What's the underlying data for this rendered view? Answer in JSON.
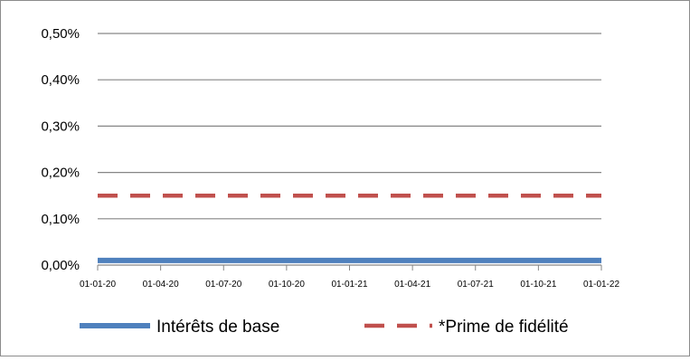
{
  "chart_data": {
    "type": "line",
    "title": "",
    "xlabel": "",
    "ylabel": "",
    "x": [
      "01-01-20",
      "01-04-20",
      "01-07-20",
      "01-10-20",
      "01-01-21",
      "01-04-21",
      "01-07-21",
      "01-10-21",
      "01-01-22"
    ],
    "y_ticks": [
      "0,00%",
      "0,10%",
      "0,20%",
      "0,30%",
      "0,40%",
      "0,50%"
    ],
    "ylim": [
      0,
      0.5
    ],
    "y_unit": "%",
    "grid": true,
    "legend_position": "bottom",
    "series": [
      {
        "name": "Intérêts de base",
        "color": "#4F81BD",
        "style": "solid",
        "values": [
          0.01,
          0.01,
          0.01,
          0.01,
          0.01,
          0.01,
          0.01,
          0.01,
          0.01
        ]
      },
      {
        "name": "*Prime de fidélité",
        "color": "#C0504D",
        "style": "dashed",
        "values": [
          0.15,
          0.15,
          0.15,
          0.15,
          0.15,
          0.15,
          0.15,
          0.15,
          0.15
        ]
      }
    ]
  }
}
